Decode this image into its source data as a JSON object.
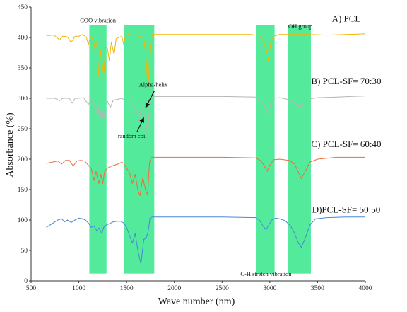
{
  "chart_data": {
    "type": "line",
    "xlabel": "Wave number (nm)",
    "ylabel": "Absorbance (%)",
    "xlim": [
      500,
      4000
    ],
    "ylim": [
      0,
      450
    ],
    "xticks": [
      500,
      1000,
      1500,
      2000,
      2500,
      3000,
      3500,
      4000
    ],
    "yticks": [
      0,
      50,
      100,
      150,
      200,
      250,
      300,
      350,
      400,
      450
    ],
    "grid": false,
    "bands": [
      {
        "x0": 1110,
        "x1": 1290,
        "color": "#22e57f"
      },
      {
        "x0": 1470,
        "x1": 1790,
        "color": "#22e57f"
      },
      {
        "x0": 2860,
        "x1": 3050,
        "color": "#22e57f"
      },
      {
        "x0": 3190,
        "x1": 3430,
        "color": "#22e57f"
      }
    ],
    "annotations": [
      {
        "text": "COO vibration",
        "x": 1200,
        "y": 425
      },
      {
        "text": "OH group",
        "x": 3320,
        "y": 415
      },
      {
        "text": "Alpha-helix",
        "x": 1780,
        "y": 319
      },
      {
        "text": "random coil",
        "x": 1560,
        "y": 235
      },
      {
        "text": "C-H stretch vibration",
        "x": 2960,
        "y": 8
      }
    ],
    "arrows": [
      {
        "from": [
          1790,
          312
        ],
        "to": [
          1700,
          285
        ]
      },
      {
        "from": [
          1610,
          245
        ],
        "to": [
          1680,
          268
        ]
      }
    ],
    "series": [
      {
        "name": "A) PCL",
        "color": "#f4b400",
        "label_x": 3800,
        "label_y": 426,
        "points": [
          [
            660,
            403
          ],
          [
            740,
            404
          ],
          [
            800,
            396
          ],
          [
            830,
            402
          ],
          [
            880,
            401
          ],
          [
            920,
            392
          ],
          [
            960,
            402
          ],
          [
            1000,
            402
          ],
          [
            1040,
            405
          ],
          [
            1080,
            400
          ],
          [
            1100,
            388
          ],
          [
            1120,
            402
          ],
          [
            1150,
            397
          ],
          [
            1170,
            380
          ],
          [
            1190,
            392
          ],
          [
            1210,
            335
          ],
          [
            1230,
            380
          ],
          [
            1250,
            350
          ],
          [
            1260,
            338
          ],
          [
            1280,
            385
          ],
          [
            1300,
            382
          ],
          [
            1320,
            362
          ],
          [
            1340,
            392
          ],
          [
            1370,
            372
          ],
          [
            1390,
            398
          ],
          [
            1420,
            400
          ],
          [
            1450,
            402
          ],
          [
            1470,
            388
          ],
          [
            1490,
            404
          ],
          [
            1520,
            405
          ],
          [
            1550,
            404
          ],
          [
            1600,
            404
          ],
          [
            1640,
            402
          ],
          [
            1680,
            398
          ],
          [
            1705,
            365
          ],
          [
            1725,
            313
          ],
          [
            1745,
            385
          ],
          [
            1770,
            405
          ],
          [
            1800,
            405
          ],
          [
            1900,
            405
          ],
          [
            2000,
            405
          ],
          [
            2200,
            405
          ],
          [
            2500,
            405
          ],
          [
            2800,
            405
          ],
          [
            2900,
            403
          ],
          [
            2935,
            393
          ],
          [
            2965,
            380
          ],
          [
            2985,
            362
          ],
          [
            3010,
            392
          ],
          [
            3040,
            402
          ],
          [
            3100,
            405
          ],
          [
            3300,
            405
          ],
          [
            3400,
            405
          ],
          [
            3600,
            404
          ],
          [
            3800,
            405
          ],
          [
            4000,
            406
          ]
        ]
      },
      {
        "name": "B) PCL-SF= 70:30",
        "color": "#b5b5b5",
        "label_x": 3800,
        "label_y": 323,
        "points": [
          [
            660,
            300
          ],
          [
            750,
            300
          ],
          [
            800,
            296
          ],
          [
            830,
            300
          ],
          [
            900,
            300
          ],
          [
            930,
            292
          ],
          [
            960,
            300
          ],
          [
            1000,
            300
          ],
          [
            1050,
            301
          ],
          [
            1100,
            290
          ],
          [
            1130,
            300
          ],
          [
            1160,
            290
          ],
          [
            1180,
            275
          ],
          [
            1200,
            290
          ],
          [
            1220,
            262
          ],
          [
            1240,
            285
          ],
          [
            1260,
            265
          ],
          [
            1280,
            290
          ],
          [
            1300,
            295
          ],
          [
            1330,
            285
          ],
          [
            1360,
            297
          ],
          [
            1400,
            298
          ],
          [
            1450,
            300
          ],
          [
            1480,
            297
          ],
          [
            1520,
            298
          ],
          [
            1570,
            290
          ],
          [
            1600,
            282
          ],
          [
            1630,
            262
          ],
          [
            1660,
            288
          ],
          [
            1690,
            270
          ],
          [
            1710,
            255
          ],
          [
            1720,
            233
          ],
          [
            1740,
            290
          ],
          [
            1770,
            302
          ],
          [
            1800,
            303
          ],
          [
            2000,
            303
          ],
          [
            2500,
            303
          ],
          [
            2850,
            302
          ],
          [
            2900,
            298
          ],
          [
            2935,
            290
          ],
          [
            2960,
            282
          ],
          [
            2985,
            272
          ],
          [
            3010,
            292
          ],
          [
            3040,
            300
          ],
          [
            3100,
            301
          ],
          [
            3200,
            298
          ],
          [
            3270,
            292
          ],
          [
            3310,
            285
          ],
          [
            3360,
            292
          ],
          [
            3420,
            299
          ],
          [
            3500,
            301
          ],
          [
            3700,
            302
          ],
          [
            4000,
            304
          ]
        ]
      },
      {
        "name": "C) PCL-SF= 60:40",
        "color": "#f26a3a",
        "label_x": 3800,
        "label_y": 220,
        "points": [
          [
            660,
            193
          ],
          [
            720,
            195
          ],
          [
            780,
            197
          ],
          [
            820,
            192
          ],
          [
            860,
            198
          ],
          [
            900,
            198
          ],
          [
            940,
            189
          ],
          [
            980,
            197
          ],
          [
            1020,
            198
          ],
          [
            1060,
            197
          ],
          [
            1100,
            190
          ],
          [
            1130,
            185
          ],
          [
            1160,
            165
          ],
          [
            1180,
            180
          ],
          [
            1210,
            160
          ],
          [
            1230,
            175
          ],
          [
            1250,
            160
          ],
          [
            1270,
            180
          ],
          [
            1300,
            185
          ],
          [
            1330,
            188
          ],
          [
            1370,
            190
          ],
          [
            1410,
            192
          ],
          [
            1450,
            195
          ],
          [
            1470,
            193
          ],
          [
            1500,
            185
          ],
          [
            1530,
            178
          ],
          [
            1560,
            160
          ],
          [
            1590,
            175
          ],
          [
            1620,
            148
          ],
          [
            1640,
            140
          ],
          [
            1670,
            170
          ],
          [
            1700,
            148
          ],
          [
            1720,
            142
          ],
          [
            1740,
            195
          ],
          [
            1760,
            203
          ],
          [
            1800,
            203
          ],
          [
            2000,
            203
          ],
          [
            2500,
            203
          ],
          [
            2850,
            202
          ],
          [
            2900,
            198
          ],
          [
            2940,
            190
          ],
          [
            2970,
            180
          ],
          [
            3000,
            190
          ],
          [
            3040,
            199
          ],
          [
            3100,
            200
          ],
          [
            3200,
            198
          ],
          [
            3260,
            192
          ],
          [
            3300,
            178
          ],
          [
            3330,
            168
          ],
          [
            3370,
            180
          ],
          [
            3420,
            195
          ],
          [
            3500,
            200
          ],
          [
            3700,
            203
          ],
          [
            4000,
            203
          ]
        ]
      },
      {
        "name": "D)PCL-SF= 50:50",
        "color": "#4a86d8",
        "label_x": 3800,
        "label_y": 112,
        "points": [
          [
            660,
            88
          ],
          [
            700,
            92
          ],
          [
            740,
            96
          ],
          [
            780,
            100
          ],
          [
            820,
            102
          ],
          [
            850,
            97
          ],
          [
            880,
            100
          ],
          [
            920,
            96
          ],
          [
            960,
            100
          ],
          [
            1000,
            103
          ],
          [
            1040,
            102
          ],
          [
            1070,
            100
          ],
          [
            1100,
            95
          ],
          [
            1130,
            88
          ],
          [
            1160,
            90
          ],
          [
            1190,
            82
          ],
          [
            1210,
            87
          ],
          [
            1240,
            78
          ],
          [
            1260,
            88
          ],
          [
            1290,
            92
          ],
          [
            1320,
            94
          ],
          [
            1360,
            97
          ],
          [
            1400,
            98
          ],
          [
            1440,
            98
          ],
          [
            1470,
            95
          ],
          [
            1500,
            88
          ],
          [
            1530,
            75
          ],
          [
            1560,
            62
          ],
          [
            1590,
            78
          ],
          [
            1620,
            48
          ],
          [
            1650,
            28
          ],
          [
            1680,
            68
          ],
          [
            1705,
            70
          ],
          [
            1725,
            80
          ],
          [
            1745,
            103
          ],
          [
            1770,
            105
          ],
          [
            1800,
            105
          ],
          [
            2000,
            105
          ],
          [
            2500,
            105
          ],
          [
            2850,
            104
          ],
          [
            2890,
            100
          ],
          [
            2930,
            90
          ],
          [
            2960,
            84
          ],
          [
            2990,
            92
          ],
          [
            3020,
            100
          ],
          [
            3060,
            103
          ],
          [
            3100,
            102
          ],
          [
            3160,
            99
          ],
          [
            3220,
            90
          ],
          [
            3260,
            78
          ],
          [
            3300,
            62
          ],
          [
            3330,
            55
          ],
          [
            3370,
            70
          ],
          [
            3420,
            92
          ],
          [
            3480,
            102
          ],
          [
            3600,
            104
          ],
          [
            3800,
            105
          ],
          [
            4000,
            105
          ]
        ]
      }
    ]
  }
}
